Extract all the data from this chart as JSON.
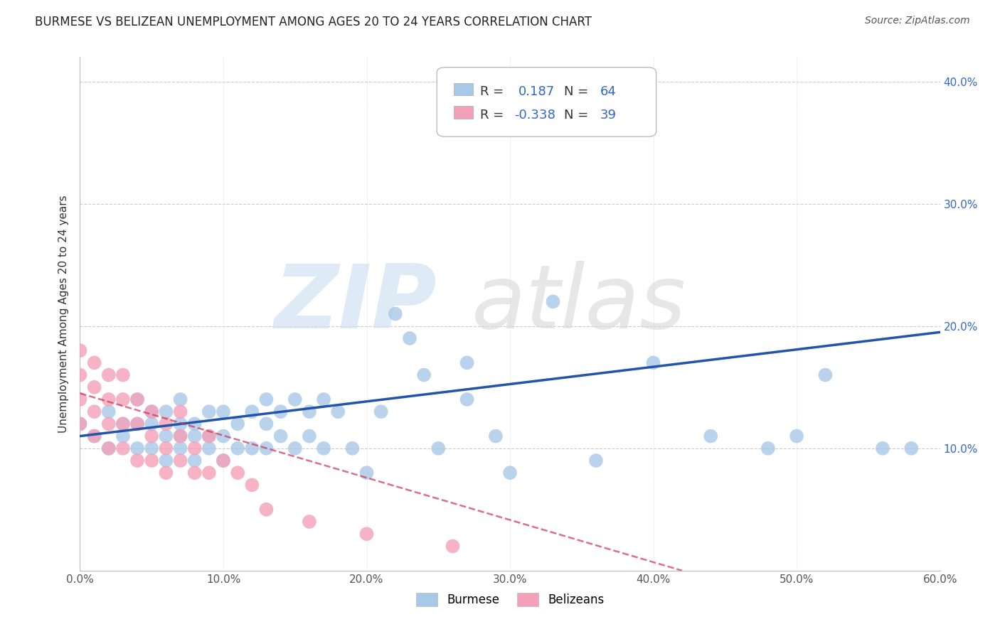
{
  "title": "BURMESE VS BELIZEAN UNEMPLOYMENT AMONG AGES 20 TO 24 YEARS CORRELATION CHART",
  "source": "Source: ZipAtlas.com",
  "ylabel": "Unemployment Among Ages 20 to 24 years",
  "xlim": [
    0.0,
    0.6
  ],
  "ylim": [
    0.0,
    0.42
  ],
  "xticks": [
    0.0,
    0.1,
    0.2,
    0.3,
    0.4,
    0.5,
    0.6
  ],
  "yticks": [
    0.0,
    0.1,
    0.2,
    0.3,
    0.4
  ],
  "xticklabels": [
    "0.0%",
    "10.0%",
    "20.0%",
    "30.0%",
    "40.0%",
    "50.0%",
    "60.0%"
  ],
  "yticklabels_right": [
    "",
    "10.0%",
    "20.0%",
    "30.0%",
    "40.0%"
  ],
  "burmese_color": "#a8c8e8",
  "belizean_color": "#f4a0b8",
  "burmese_line_color": "#2255aa",
  "belizean_line_color": "#cc3355",
  "burmese_R": 0.187,
  "burmese_N": 64,
  "belizean_R": -0.338,
  "belizean_N": 39,
  "grid_color": "#cccccc",
  "background_color": "#ffffff",
  "burmese_x": [
    0.0,
    0.01,
    0.02,
    0.02,
    0.03,
    0.03,
    0.04,
    0.04,
    0.04,
    0.05,
    0.05,
    0.05,
    0.06,
    0.06,
    0.06,
    0.07,
    0.07,
    0.07,
    0.07,
    0.08,
    0.08,
    0.08,
    0.09,
    0.09,
    0.09,
    0.1,
    0.1,
    0.1,
    0.11,
    0.11,
    0.12,
    0.12,
    0.13,
    0.13,
    0.13,
    0.14,
    0.14,
    0.15,
    0.15,
    0.16,
    0.16,
    0.17,
    0.17,
    0.18,
    0.19,
    0.2,
    0.21,
    0.22,
    0.23,
    0.24,
    0.25,
    0.27,
    0.27,
    0.29,
    0.3,
    0.33,
    0.36,
    0.4,
    0.44,
    0.48,
    0.5,
    0.52,
    0.56,
    0.58
  ],
  "burmese_y": [
    0.12,
    0.11,
    0.1,
    0.13,
    0.12,
    0.11,
    0.1,
    0.12,
    0.14,
    0.1,
    0.12,
    0.13,
    0.09,
    0.11,
    0.13,
    0.1,
    0.11,
    0.12,
    0.14,
    0.09,
    0.11,
    0.12,
    0.1,
    0.11,
    0.13,
    0.09,
    0.11,
    0.13,
    0.1,
    0.12,
    0.1,
    0.13,
    0.1,
    0.12,
    0.14,
    0.11,
    0.13,
    0.1,
    0.14,
    0.11,
    0.13,
    0.1,
    0.14,
    0.13,
    0.1,
    0.08,
    0.13,
    0.21,
    0.19,
    0.16,
    0.1,
    0.14,
    0.17,
    0.11,
    0.08,
    0.22,
    0.09,
    0.17,
    0.11,
    0.1,
    0.11,
    0.16,
    0.1,
    0.1
  ],
  "belizean_x": [
    0.0,
    0.0,
    0.0,
    0.0,
    0.01,
    0.01,
    0.01,
    0.01,
    0.02,
    0.02,
    0.02,
    0.02,
    0.03,
    0.03,
    0.03,
    0.03,
    0.04,
    0.04,
    0.04,
    0.05,
    0.05,
    0.05,
    0.06,
    0.06,
    0.06,
    0.07,
    0.07,
    0.07,
    0.08,
    0.08,
    0.09,
    0.09,
    0.1,
    0.11,
    0.12,
    0.13,
    0.16,
    0.2,
    0.26
  ],
  "belizean_y": [
    0.12,
    0.14,
    0.16,
    0.18,
    0.11,
    0.13,
    0.15,
    0.17,
    0.1,
    0.12,
    0.14,
    0.16,
    0.1,
    0.12,
    0.14,
    0.16,
    0.09,
    0.12,
    0.14,
    0.09,
    0.11,
    0.13,
    0.08,
    0.1,
    0.12,
    0.09,
    0.11,
    0.13,
    0.08,
    0.1,
    0.08,
    0.11,
    0.09,
    0.08,
    0.07,
    0.05,
    0.04,
    0.03,
    0.02
  ],
  "blue_line_x0": 0.0,
  "blue_line_x1": 0.6,
  "blue_line_y0": 0.11,
  "blue_line_y1": 0.195,
  "pink_line_x0": 0.0,
  "pink_line_x1": 0.42,
  "pink_line_y0": 0.145,
  "pink_line_y1": 0.0
}
